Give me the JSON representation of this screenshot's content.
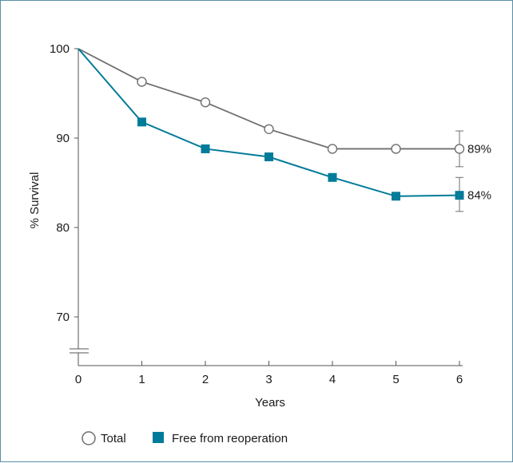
{
  "chart_data": {
    "type": "line",
    "title": "",
    "xlabel": "Years",
    "ylabel": "% Survival",
    "x": [
      0,
      1,
      2,
      3,
      4,
      5,
      6
    ],
    "xlim": [
      0,
      6
    ],
    "ylim": [
      65,
      100
    ],
    "y_axis_break": true,
    "y_ticks": [
      70,
      80,
      90,
      100
    ],
    "x_ticks": [
      0,
      1,
      2,
      3,
      4,
      5,
      6
    ],
    "grid": false,
    "legend_position": "bottom-left",
    "series": [
      {
        "name": "Total",
        "marker": "open-circle",
        "color": "#6d6e71",
        "values": [
          100,
          96.3,
          94.0,
          91.0,
          88.8,
          88.8,
          88.8
        ],
        "end_label": "89%",
        "end_error": [
          86.8,
          90.8
        ]
      },
      {
        "name": "Free from reoperation",
        "marker": "filled-square",
        "color": "#007b99",
        "values": [
          100,
          91.8,
          88.8,
          87.9,
          85.6,
          83.5,
          83.6
        ],
        "end_label": "84%",
        "end_error": [
          81.8,
          85.6
        ]
      }
    ]
  }
}
